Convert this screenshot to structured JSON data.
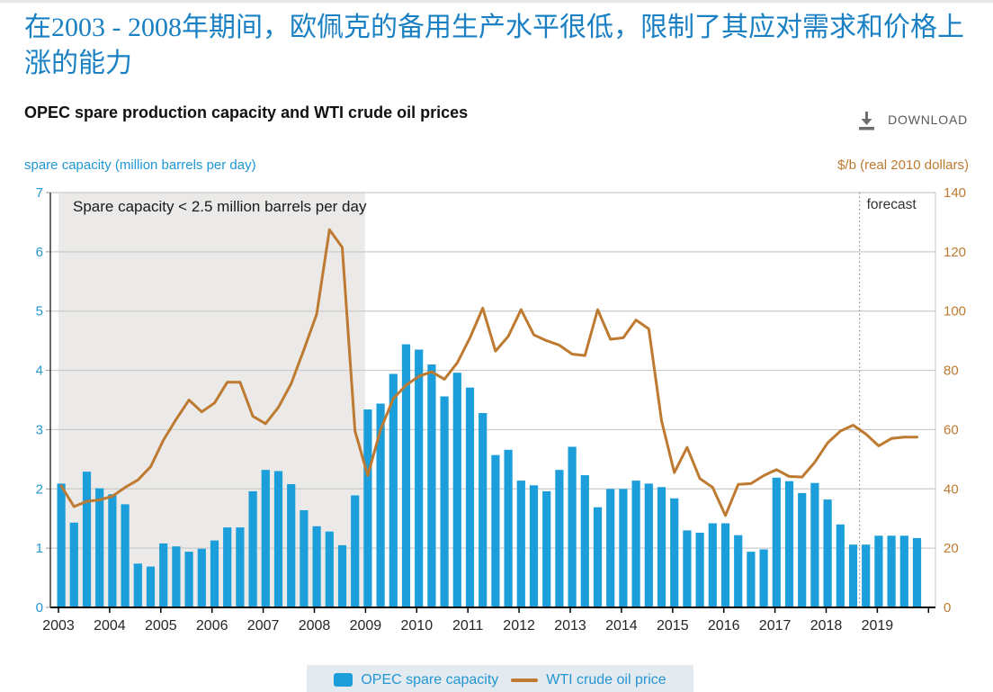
{
  "page": {
    "headline_zh": "在2003 - 2008年期间，欧佩克的备用生产水平很低，限制了其应对需求和价格上涨的能力",
    "chart_title": "OPEC spare production capacity and WTI crude oil prices",
    "download_label": "DOWNLOAD",
    "left_axis_title": "spare capacity (million barrels per day)",
    "right_axis_title": "$/b (real 2010 dollars)"
  },
  "legend": {
    "bar_label": "OPEC spare capacity",
    "line_label": "WTI crude oil price"
  },
  "colors": {
    "bar_blue": "#1b9ed9",
    "line_orange": "#bd7a30",
    "left_axis_text": "#2496d2",
    "right_axis_text": "#bd7a30",
    "gridline": "#cbcbcb",
    "shaded_region": "#ebeae8",
    "axis_black": "#000000",
    "label_dark": "#1a1a1a",
    "forecast_line": "#8c8c8c",
    "headline_blue": "#1a80c4"
  },
  "chart_data": {
    "type": "bar",
    "subtype": "dual-axis bar + line, quarterly data",
    "title": "OPEC spare production capacity and WTI crude oil prices",
    "annotation": "Spare capacity < 2.5 million barrels per day",
    "forecast_label": "forecast",
    "x_tick_years": [
      "2003",
      "2004",
      "2005",
      "2006",
      "2007",
      "2008",
      "2009",
      "2010",
      "2011",
      "2012",
      "2013",
      "2014",
      "2015",
      "2016",
      "2017",
      "2018",
      "2019"
    ],
    "quarters_per_year": 4,
    "left_axis": {
      "label": "spare capacity (million barrels per day)",
      "min": 0,
      "max": 7,
      "step": 1,
      "ticks": [
        "0",
        "1",
        "2",
        "3",
        "4",
        "5",
        "6",
        "7"
      ]
    },
    "right_axis": {
      "label": "$/b (real 2010 dollars)",
      "min": 0,
      "max": 140,
      "step": 20,
      "ticks": [
        "0",
        "20",
        "40",
        "60",
        "80",
        "100",
        "120",
        "140"
      ]
    },
    "shaded_region": {
      "from": "2003 Q1",
      "to": "2008 Q4",
      "note": "Spare capacity < 2.5 million barrels per day"
    },
    "forecast_start": "2018 Q4",
    "series": [
      {
        "name": "OPEC spare capacity",
        "type": "bar",
        "axis": "left",
        "units": "million barrels per day",
        "values": [
          2.09,
          1.43,
          2.29,
          2.01,
          1.91,
          1.74,
          0.74,
          0.69,
          1.08,
          1.03,
          0.94,
          0.99,
          1.13,
          1.35,
          1.35,
          1.96,
          2.32,
          2.3,
          2.08,
          1.64,
          1.37,
          1.28,
          1.05,
          1.89,
          3.34,
          3.44,
          3.94,
          4.44,
          4.35,
          4.1,
          3.56,
          3.96,
          3.71,
          3.28,
          2.57,
          2.66,
          2.14,
          2.06,
          1.96,
          2.32,
          2.71,
          2.23,
          1.69,
          2.0,
          2.0,
          2.14,
          2.09,
          2.03,
          1.84,
          1.3,
          1.26,
          1.42,
          1.42,
          1.22,
          0.94,
          0.98,
          2.19,
          2.13,
          1.93,
          2.1,
          1.82,
          1.4,
          1.06,
          1.06,
          1.21,
          1.21,
          1.21,
          1.17
        ]
      },
      {
        "name": "WTI crude oil price",
        "type": "line",
        "axis": "right",
        "units": "$/b (real 2010 dollars)",
        "values": [
          41,
          34,
          35.8,
          36.3,
          37.5,
          40.5,
          43,
          47.5,
          56.5,
          63.5,
          70,
          66,
          69,
          76,
          76,
          64.5,
          62,
          67.5,
          75.5,
          87,
          99,
          127.5,
          121.5,
          59.5,
          44.5,
          60,
          70.5,
          75,
          78,
          79.5,
          77,
          82.5,
          91,
          101,
          86.5,
          91.5,
          100.5,
          92,
          90,
          88.5,
          85.5,
          85,
          100.5,
          90.5,
          91,
          97,
          94,
          63,
          45.5,
          54,
          43.5,
          40.5,
          31,
          41.5,
          41.8,
          44.5,
          46.5,
          44.2,
          44,
          49,
          55.5,
          59.5,
          61.5,
          58.5,
          54.5,
          57,
          57.5,
          57.5
        ]
      }
    ]
  }
}
